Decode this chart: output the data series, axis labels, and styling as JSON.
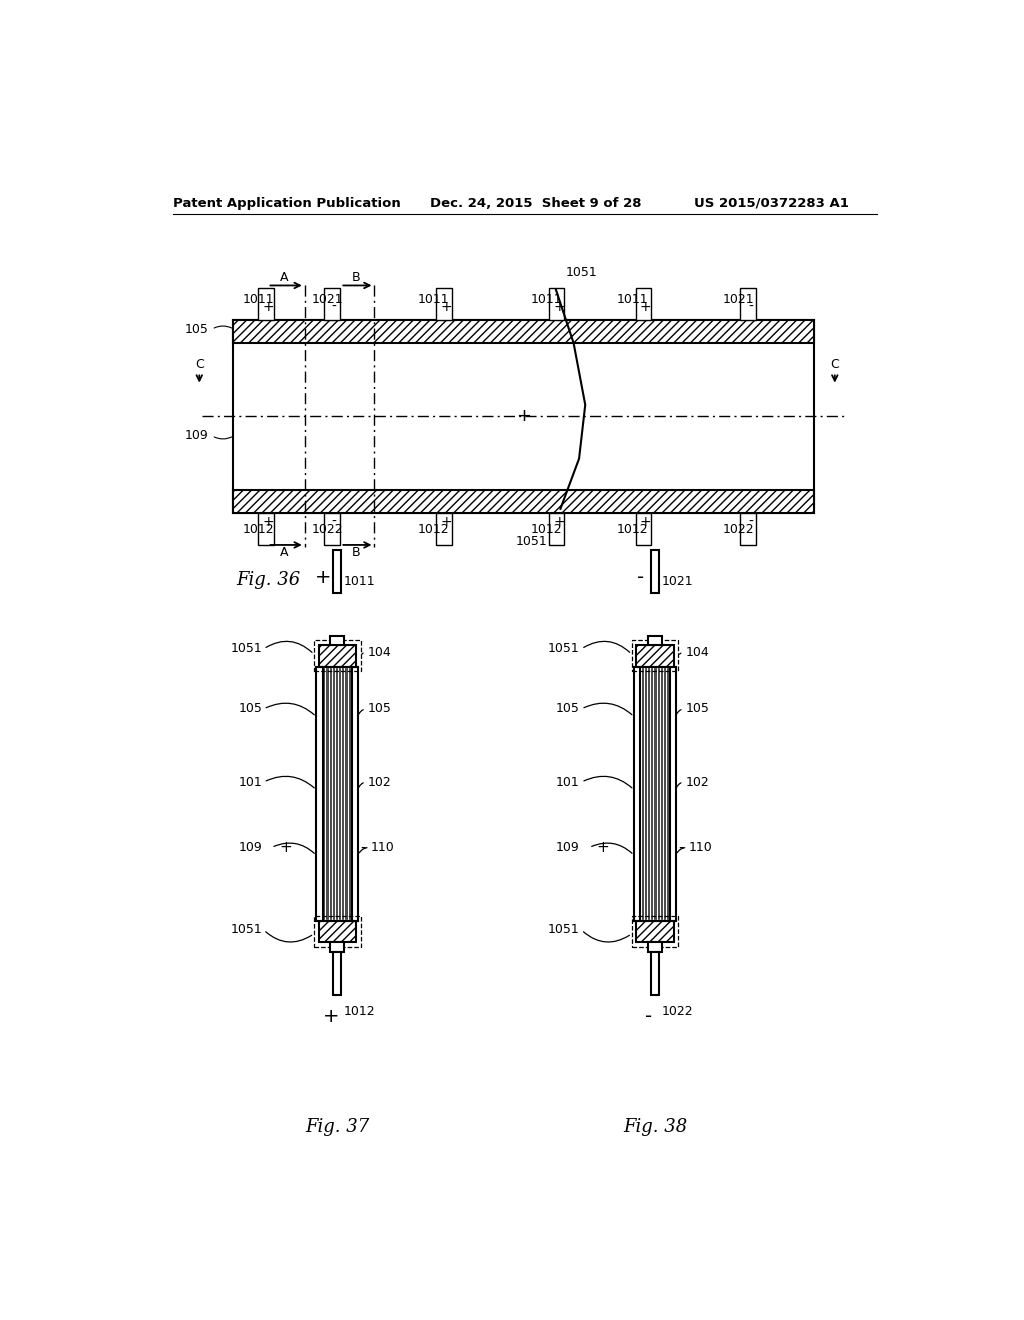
{
  "bg_color": "#ffffff",
  "line_color": "#000000",
  "header_left": "Patent Application Publication",
  "header_mid": "Dec. 24, 2015  Sheet 9 of 28",
  "header_right": "US 2015/0372283 A1"
}
